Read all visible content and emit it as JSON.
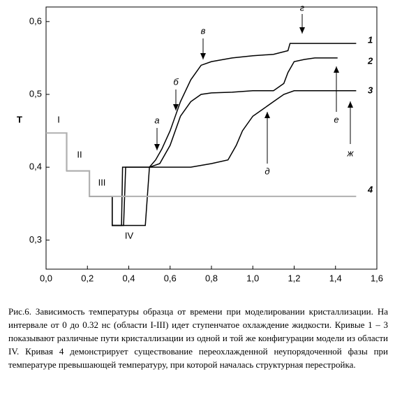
{
  "chart_data": {
    "type": "line",
    "ylabel": "T",
    "xlim": [
      0,
      1.6
    ],
    "ylim": [
      0.26,
      0.62
    ],
    "xticks": [
      {
        "value": 0,
        "label": "0,0"
      },
      {
        "value": 0.2,
        "label": "0,2"
      },
      {
        "value": 0.4,
        "label": "0,4"
      },
      {
        "value": 0.6,
        "label": "0,6"
      },
      {
        "value": 0.8,
        "label": "0,8"
      },
      {
        "value": 1.0,
        "label": "1,0"
      },
      {
        "value": 1.2,
        "label": "1,2"
      },
      {
        "value": 1.4,
        "label": "1,4"
      },
      {
        "value": 1.6,
        "label": "1,6"
      }
    ],
    "yticks": [
      {
        "value": 0.3,
        "label": "0,3"
      },
      {
        "value": 0.4,
        "label": "0,4"
      },
      {
        "value": 0.5,
        "label": "0,5"
      },
      {
        "value": 0.6,
        "label": "0,6"
      }
    ],
    "series": [
      {
        "name": "1",
        "color": "#000000",
        "x": [
          0,
          0.1,
          0.1,
          0.21,
          0.21,
          0.32,
          0.32,
          0.365,
          0.37,
          0.45,
          0.5,
          0.53,
          0.56,
          0.6,
          0.65,
          0.7,
          0.75,
          0.8,
          0.9,
          1.0,
          1.1,
          1.17,
          1.18,
          1.3,
          1.4,
          1.5
        ],
        "values": [
          0.447,
          0.447,
          0.395,
          0.395,
          0.36,
          0.36,
          0.32,
          0.32,
          0.4,
          0.4,
          0.4,
          0.41,
          0.425,
          0.45,
          0.49,
          0.52,
          0.54,
          0.545,
          0.55,
          0.553,
          0.555,
          0.56,
          0.57,
          0.57,
          0.57,
          0.57
        ]
      },
      {
        "name": "2",
        "color": "#000000",
        "x": [
          0,
          0.1,
          0.1,
          0.21,
          0.21,
          0.32,
          0.32,
          0.375,
          0.385,
          0.5,
          0.55,
          0.6,
          0.65,
          0.7,
          0.75,
          0.8,
          0.9,
          1.0,
          1.1,
          1.15,
          1.17,
          1.2,
          1.25,
          1.3,
          1.41
        ],
        "values": [
          0.447,
          0.447,
          0.395,
          0.395,
          0.36,
          0.36,
          0.32,
          0.32,
          0.4,
          0.4,
          0.405,
          0.43,
          0.47,
          0.49,
          0.5,
          0.502,
          0.503,
          0.505,
          0.505,
          0.515,
          0.53,
          0.545,
          0.548,
          0.55,
          0.55
        ]
      },
      {
        "name": "3",
        "color": "#000000",
        "x": [
          0,
          0.1,
          0.1,
          0.21,
          0.21,
          0.32,
          0.32,
          0.48,
          0.5,
          0.6,
          0.7,
          0.8,
          0.88,
          0.92,
          0.95,
          1.0,
          1.05,
          1.1,
          1.15,
          1.2,
          1.3,
          1.4,
          1.5
        ],
        "values": [
          0.447,
          0.447,
          0.395,
          0.395,
          0.36,
          0.36,
          0.32,
          0.32,
          0.4,
          0.4,
          0.4,
          0.405,
          0.41,
          0.43,
          0.45,
          0.47,
          0.48,
          0.49,
          0.5,
          0.505,
          0.505,
          0.505,
          0.505
        ]
      },
      {
        "name": "4",
        "color": "#b0b0b0",
        "x": [
          0,
          0.1,
          0.1,
          0.21,
          0.21,
          0.32,
          1.5
        ],
        "values": [
          0.447,
          0.447,
          0.395,
          0.395,
          0.36,
          0.36,
          0.36
        ]
      }
    ],
    "annotations": [
      "I",
      "II",
      "III",
      "IV",
      "а",
      "б",
      "в",
      "г",
      "д",
      "е",
      "ж"
    ]
  },
  "caption": "Рис.6. Зависимость температуры образца от времени при моделировании кристаллизации. На интервале от 0 до 0.32 нс (области I-III) идет ступенчатое охлаждение жидкости. Кривые 1 – 3 показывают различные пути кристаллизации из одной и той же конфигурации модели из области IV. Кривая 4 демонстрирует существование переохлажденной неупорядоченной фазы при температуре превышающей температуру, при которой началась структурная перестройка."
}
